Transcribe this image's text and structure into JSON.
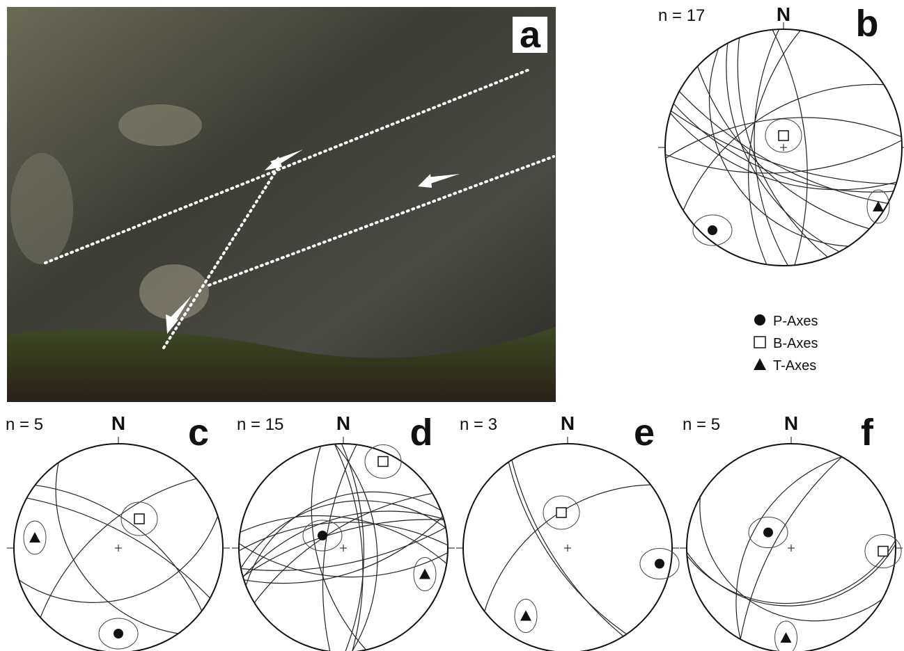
{
  "photo": {
    "label": "a"
  },
  "panels": [
    {
      "label": "b",
      "count": "n = 17",
      "north": "N"
    },
    {
      "label": "c",
      "count": "n = 5",
      "north": "N"
    },
    {
      "label": "d",
      "count": "n = 15",
      "north": "N"
    },
    {
      "label": "e",
      "count": "n = 3",
      "north": "N"
    },
    {
      "label": "f",
      "count": "n = 5",
      "north": "N"
    }
  ],
  "legend": [
    "P-Axes",
    "B-Axes",
    "T-Axes"
  ]
}
